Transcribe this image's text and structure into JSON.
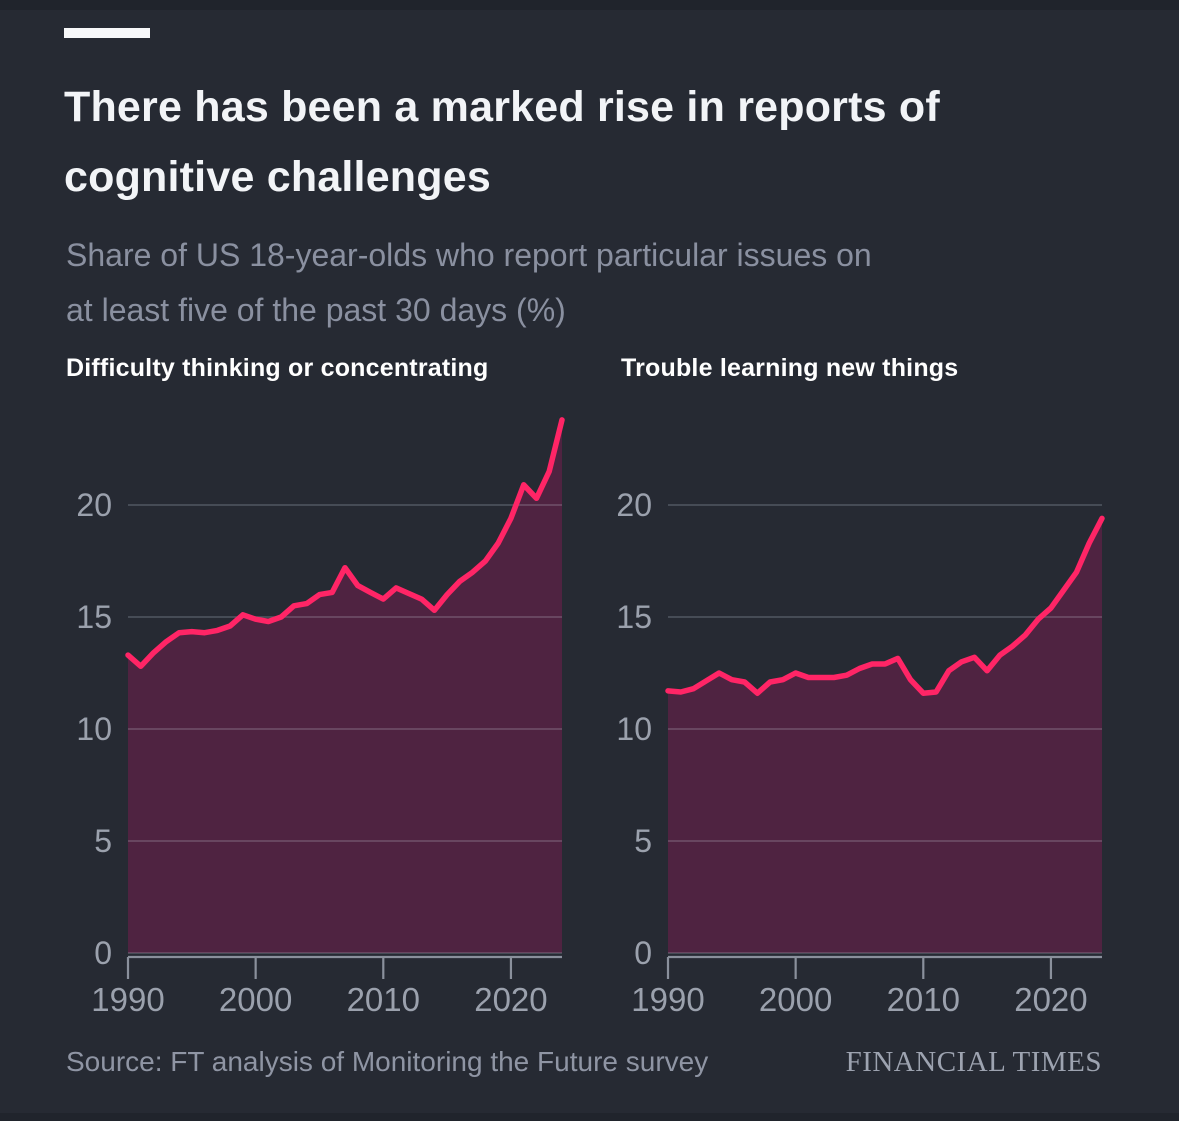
{
  "theme": {
    "background": "#262a33",
    "edge_strip": "#20242c",
    "title_color": "#f2f4f7",
    "subtitle_color": "#8a90a0",
    "panel_label_color": "#ffffff",
    "tick_label_color": "#9ba1ad",
    "axis_color": "#8a909c",
    "gridline_color": "rgba(205,210,220,0.27)",
    "accent_bar_color": "#f7f8fa",
    "source_color": "#8f95a4",
    "brand_color": "#9da3b0",
    "line_pink": "#ff2566",
    "area_plum": "#4f2341"
  },
  "header": {
    "title_lines": [
      "There has been a marked rise in reports of",
      "cognitive challenges"
    ],
    "subtitle_lines": [
      "Share of US 18-year-olds who report particular issues on",
      "at least five of the past 30 days (%)"
    ]
  },
  "footer": {
    "source": "Source: FT analysis of Monitoring the Future survey",
    "brand": "FINANCIAL TIMES"
  },
  "chart_data": [
    {
      "type": "area",
      "title": "Difficulty thinking or concentrating",
      "x": [
        1990,
        1991,
        1992,
        1993,
        1994,
        1995,
        1996,
        1997,
        1998,
        1999,
        2000,
        2001,
        2002,
        2003,
        2004,
        2005,
        2006,
        2007,
        2008,
        2009,
        2010,
        2011,
        2012,
        2013,
        2014,
        2015,
        2016,
        2017,
        2018,
        2019,
        2020,
        2021,
        2022,
        2023,
        2024
      ],
      "values": [
        13.3,
        12.8,
        13.4,
        13.9,
        14.3,
        14.35,
        14.3,
        14.4,
        14.6,
        15.1,
        14.9,
        14.8,
        15.0,
        15.5,
        15.6,
        16.0,
        16.1,
        17.2,
        16.4,
        16.1,
        15.8,
        16.3,
        16.05,
        15.8,
        15.3,
        16.0,
        16.6,
        17.0,
        17.5,
        18.3,
        19.4,
        20.9,
        20.3,
        21.5,
        23.8
      ],
      "xlabel": "",
      "ylabel": "",
      "ylim": [
        0,
        24.5
      ],
      "xlim": [
        1990,
        2024
      ],
      "yticks": [
        0,
        5,
        10,
        15,
        20
      ],
      "xticks": [
        1990,
        2000,
        2010,
        2020
      ],
      "grid": true,
      "legend": false,
      "line_color": "#ff2566",
      "fill_color": "#4f2341"
    },
    {
      "type": "area",
      "title": "Trouble learning new things",
      "x": [
        1990,
        1991,
        1992,
        1993,
        1994,
        1995,
        1996,
        1997,
        1998,
        1999,
        2000,
        2001,
        2002,
        2003,
        2004,
        2005,
        2006,
        2007,
        2008,
        2009,
        2010,
        2011,
        2012,
        2013,
        2014,
        2015,
        2016,
        2017,
        2018,
        2019,
        2020,
        2021,
        2022,
        2023,
        2024
      ],
      "values": [
        11.7,
        11.65,
        11.8,
        12.15,
        12.5,
        12.2,
        12.1,
        11.6,
        12.1,
        12.2,
        12.5,
        12.3,
        12.3,
        12.3,
        12.4,
        12.7,
        12.9,
        12.9,
        13.15,
        12.2,
        11.6,
        11.65,
        12.6,
        13.0,
        13.2,
        12.6,
        13.3,
        13.7,
        14.2,
        14.9,
        15.4,
        16.2,
        17.0,
        18.3,
        19.4
      ],
      "xlabel": "",
      "ylabel": "",
      "ylim": [
        0,
        24.5
      ],
      "xlim": [
        1990,
        2024
      ],
      "yticks": [
        0,
        5,
        10,
        15,
        20
      ],
      "xticks": [
        1990,
        2000,
        2010,
        2020
      ],
      "grid": true,
      "legend": false,
      "line_color": "#ff2566",
      "fill_color": "#4f2341"
    }
  ]
}
